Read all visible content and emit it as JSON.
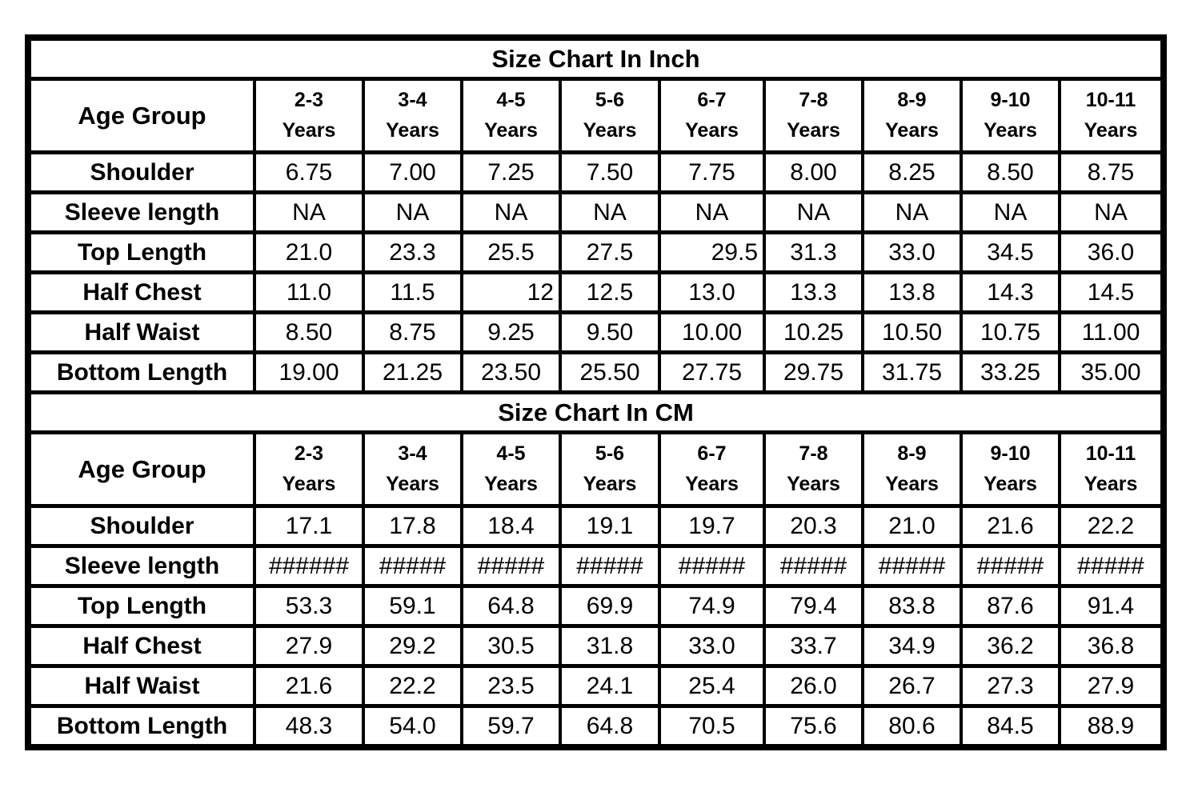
{
  "page": {
    "background_color": "#ffffff",
    "text_color": "#000000",
    "border_color": "#000000"
  },
  "chart_data": [
    {
      "type": "table",
      "title": "Size Chart In Inch",
      "corner_label": "Age Group",
      "unit_label": "Years",
      "age_ranges": [
        "2-3",
        "3-4",
        "4-5",
        "5-6",
        "6-7",
        "7-8",
        "8-9",
        "9-10",
        "10-11"
      ],
      "rows": [
        {
          "label": "Shoulder",
          "values": [
            "6.75",
            "7.00",
            "7.25",
            "7.50",
            "7.75",
            "8.00",
            "8.25",
            "8.50",
            "8.75"
          ]
        },
        {
          "label": "Sleeve length",
          "values": [
            "NA",
            "NA",
            "NA",
            "NA",
            "NA",
            "NA",
            "NA",
            "NA",
            "NA"
          ]
        },
        {
          "label": "Top Length",
          "values": [
            "21.0",
            "23.3",
            "25.5",
            "27.5",
            "29.5",
            "31.3",
            "33.0",
            "34.5",
            "36.0"
          ],
          "right_aligned_cols": [
            4
          ]
        },
        {
          "label": "Half Chest",
          "values": [
            "11.0",
            "11.5",
            "12",
            "12.5",
            "13.0",
            "13.3",
            "13.8",
            "14.3",
            "14.5"
          ],
          "right_aligned_cols": [
            2
          ]
        },
        {
          "label": "Half Waist",
          "values": [
            "8.50",
            "8.75",
            "9.25",
            "9.50",
            "10.00",
            "10.25",
            "10.50",
            "10.75",
            "11.00"
          ]
        },
        {
          "label": "Bottom Length",
          "values": [
            "19.00",
            "21.25",
            "23.50",
            "25.50",
            "27.75",
            "29.75",
            "31.75",
            "33.25",
            "35.00"
          ]
        }
      ]
    },
    {
      "type": "table",
      "title": "Size Chart In CM",
      "corner_label": "Age Group",
      "unit_label": "Years",
      "age_ranges": [
        "2-3",
        "3-4",
        "4-5",
        "5-6",
        "6-7",
        "7-8",
        "8-9",
        "9-10",
        "10-11"
      ],
      "rows": [
        {
          "label": "Shoulder",
          "values": [
            "17.1",
            "17.8",
            "18.4",
            "19.1",
            "19.7",
            "20.3",
            "21.0",
            "21.6",
            "22.2"
          ]
        },
        {
          "label": "Sleeve length",
          "values": [
            "######",
            "#####",
            "#####",
            "#####",
            "#####",
            "#####",
            "#####",
            "#####",
            "#####"
          ]
        },
        {
          "label": "Top Length",
          "values": [
            "53.3",
            "59.1",
            "64.8",
            "69.9",
            "74.9",
            "79.4",
            "83.8",
            "87.6",
            "91.4"
          ]
        },
        {
          "label": "Half Chest",
          "values": [
            "27.9",
            "29.2",
            "30.5",
            "31.8",
            "33.0",
            "33.7",
            "34.9",
            "36.2",
            "36.8"
          ]
        },
        {
          "label": "Half Waist",
          "values": [
            "21.6",
            "22.2",
            "23.5",
            "24.1",
            "25.4",
            "26.0",
            "26.7",
            "27.3",
            "27.9"
          ]
        },
        {
          "label": "Bottom Length",
          "values": [
            "48.3",
            "54.0",
            "59.7",
            "64.8",
            "70.5",
            "75.6",
            "80.6",
            "84.5",
            "88.9"
          ]
        }
      ]
    }
  ]
}
